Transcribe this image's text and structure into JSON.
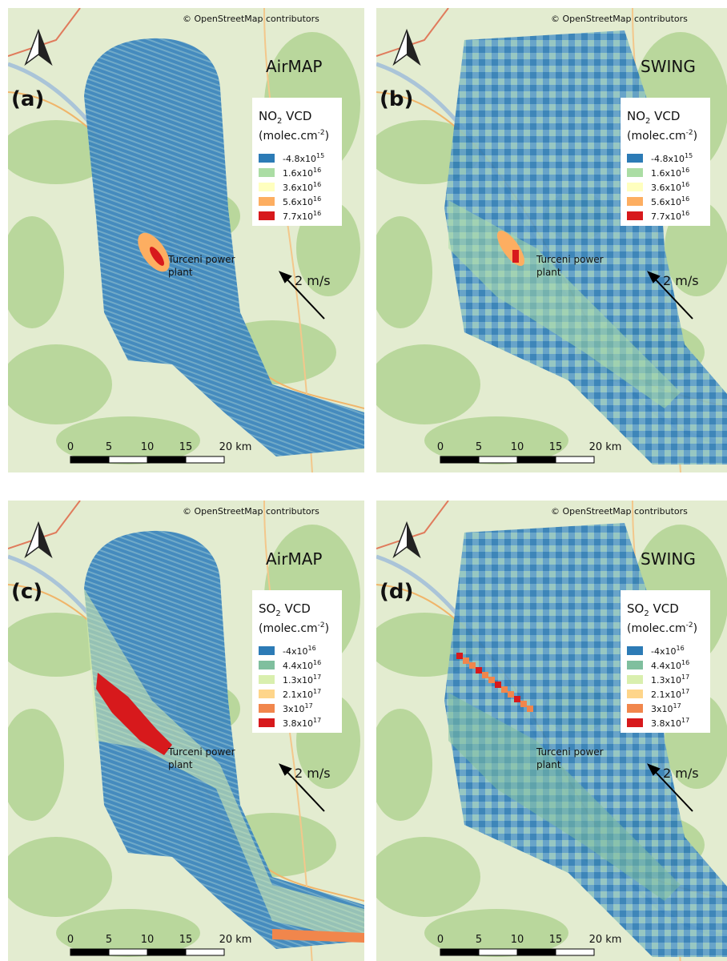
{
  "panels": [
    {
      "label": "(a)",
      "instrument": "AirMAP",
      "copyright": "© OpenStreetMap contributors",
      "legend": {
        "title": {
          "species": "NO",
          "subscript": "2",
          "suffix": " VCD"
        },
        "units": {
          "text": "(molec.cm",
          "superscript": "-2",
          "close": ")"
        },
        "entries": [
          {
            "base": "-4.8x10",
            "exponent": "15",
            "color": "#2c7bb6"
          },
          {
            "base": "1.6x10",
            "exponent": "16",
            "color": "#abdda4"
          },
          {
            "base": "3.6x10",
            "exponent": "16",
            "color": "#ffffbf"
          },
          {
            "base": "5.6x10",
            "exponent": "16",
            "color": "#fdae61"
          },
          {
            "base": "7.7x10",
            "exponent": "16",
            "color": "#d7191c"
          }
        ]
      },
      "annotation": [
        "Turceni power",
        "plant"
      ],
      "wind": "2 m/s",
      "scale": [
        "0",
        "5",
        "10",
        "15",
        "20 km"
      ]
    },
    {
      "label": "(b)",
      "instrument": "SWING",
      "copyright": "© OpenStreetMap contributors",
      "legend": {
        "title": {
          "species": "NO",
          "subscript": "2",
          "suffix": " VCD"
        },
        "units": {
          "text": "(molec.cm",
          "superscript": "-2",
          "close": ")"
        },
        "entries": [
          {
            "base": "-4.8x10",
            "exponent": "15",
            "color": "#2c7bb6"
          },
          {
            "base": "1.6x10",
            "exponent": "16",
            "color": "#abdda4"
          },
          {
            "base": "3.6x10",
            "exponent": "16",
            "color": "#ffffbf"
          },
          {
            "base": "5.6x10",
            "exponent": "16",
            "color": "#fdae61"
          },
          {
            "base": "7.7x10",
            "exponent": "16",
            "color": "#d7191c"
          }
        ]
      },
      "annotation": [
        "Turceni power",
        "plant"
      ],
      "wind": "2 m/s",
      "scale": [
        "0",
        "5",
        "10",
        "15",
        "20 km"
      ]
    },
    {
      "label": "(c)",
      "instrument": "AirMAP",
      "copyright": "© OpenStreetMap contributors",
      "legend": {
        "title": {
          "species": "SO",
          "subscript": "2",
          "suffix": " VCD"
        },
        "units": {
          "text": "(molec.cm",
          "superscript": "-2",
          "close": ")"
        },
        "entries": [
          {
            "base": "-4x10",
            "exponent": "16",
            "color": "#2c7bb6"
          },
          {
            "base": "4.4x10",
            "exponent": "16",
            "color": "#7fbf9e"
          },
          {
            "base": "1.3x10",
            "exponent": "17",
            "color": "#d9efae"
          },
          {
            "base": "2.1x10",
            "exponent": "17",
            "color": "#fed58a"
          },
          {
            "base": "3x10",
            "exponent": "17",
            "color": "#f1864c"
          },
          {
            "base": "3.8x10",
            "exponent": "17",
            "color": "#d7191c"
          }
        ]
      },
      "annotation": [
        "Turceni power",
        "plant"
      ],
      "wind": "2 m/s",
      "scale": [
        "0",
        "5",
        "10",
        "15",
        "20 km"
      ]
    },
    {
      "label": "(d)",
      "instrument": "SWING",
      "copyright": "© OpenStreetMap contributors",
      "legend": {
        "title": {
          "species": "SO",
          "subscript": "2",
          "suffix": " VCD"
        },
        "units": {
          "text": "(molec.cm",
          "superscript": "-2",
          "close": ")"
        },
        "entries": [
          {
            "base": "-4x10",
            "exponent": "16",
            "color": "#2c7bb6"
          },
          {
            "base": "4.4x10",
            "exponent": "16",
            "color": "#7fbf9e"
          },
          {
            "base": "1.3x10",
            "exponent": "17",
            "color": "#d9efae"
          },
          {
            "base": "2.1x10",
            "exponent": "17",
            "color": "#fed58a"
          },
          {
            "base": "3x10",
            "exponent": "17",
            "color": "#f1864c"
          },
          {
            "base": "3.8x10",
            "exponent": "17",
            "color": "#d7191c"
          }
        ]
      },
      "annotation": [
        "Turceni power",
        "plant"
      ],
      "wind": "2 m/s",
      "scale": [
        "0",
        "5",
        "10",
        "15",
        "20 km"
      ]
    }
  ]
}
